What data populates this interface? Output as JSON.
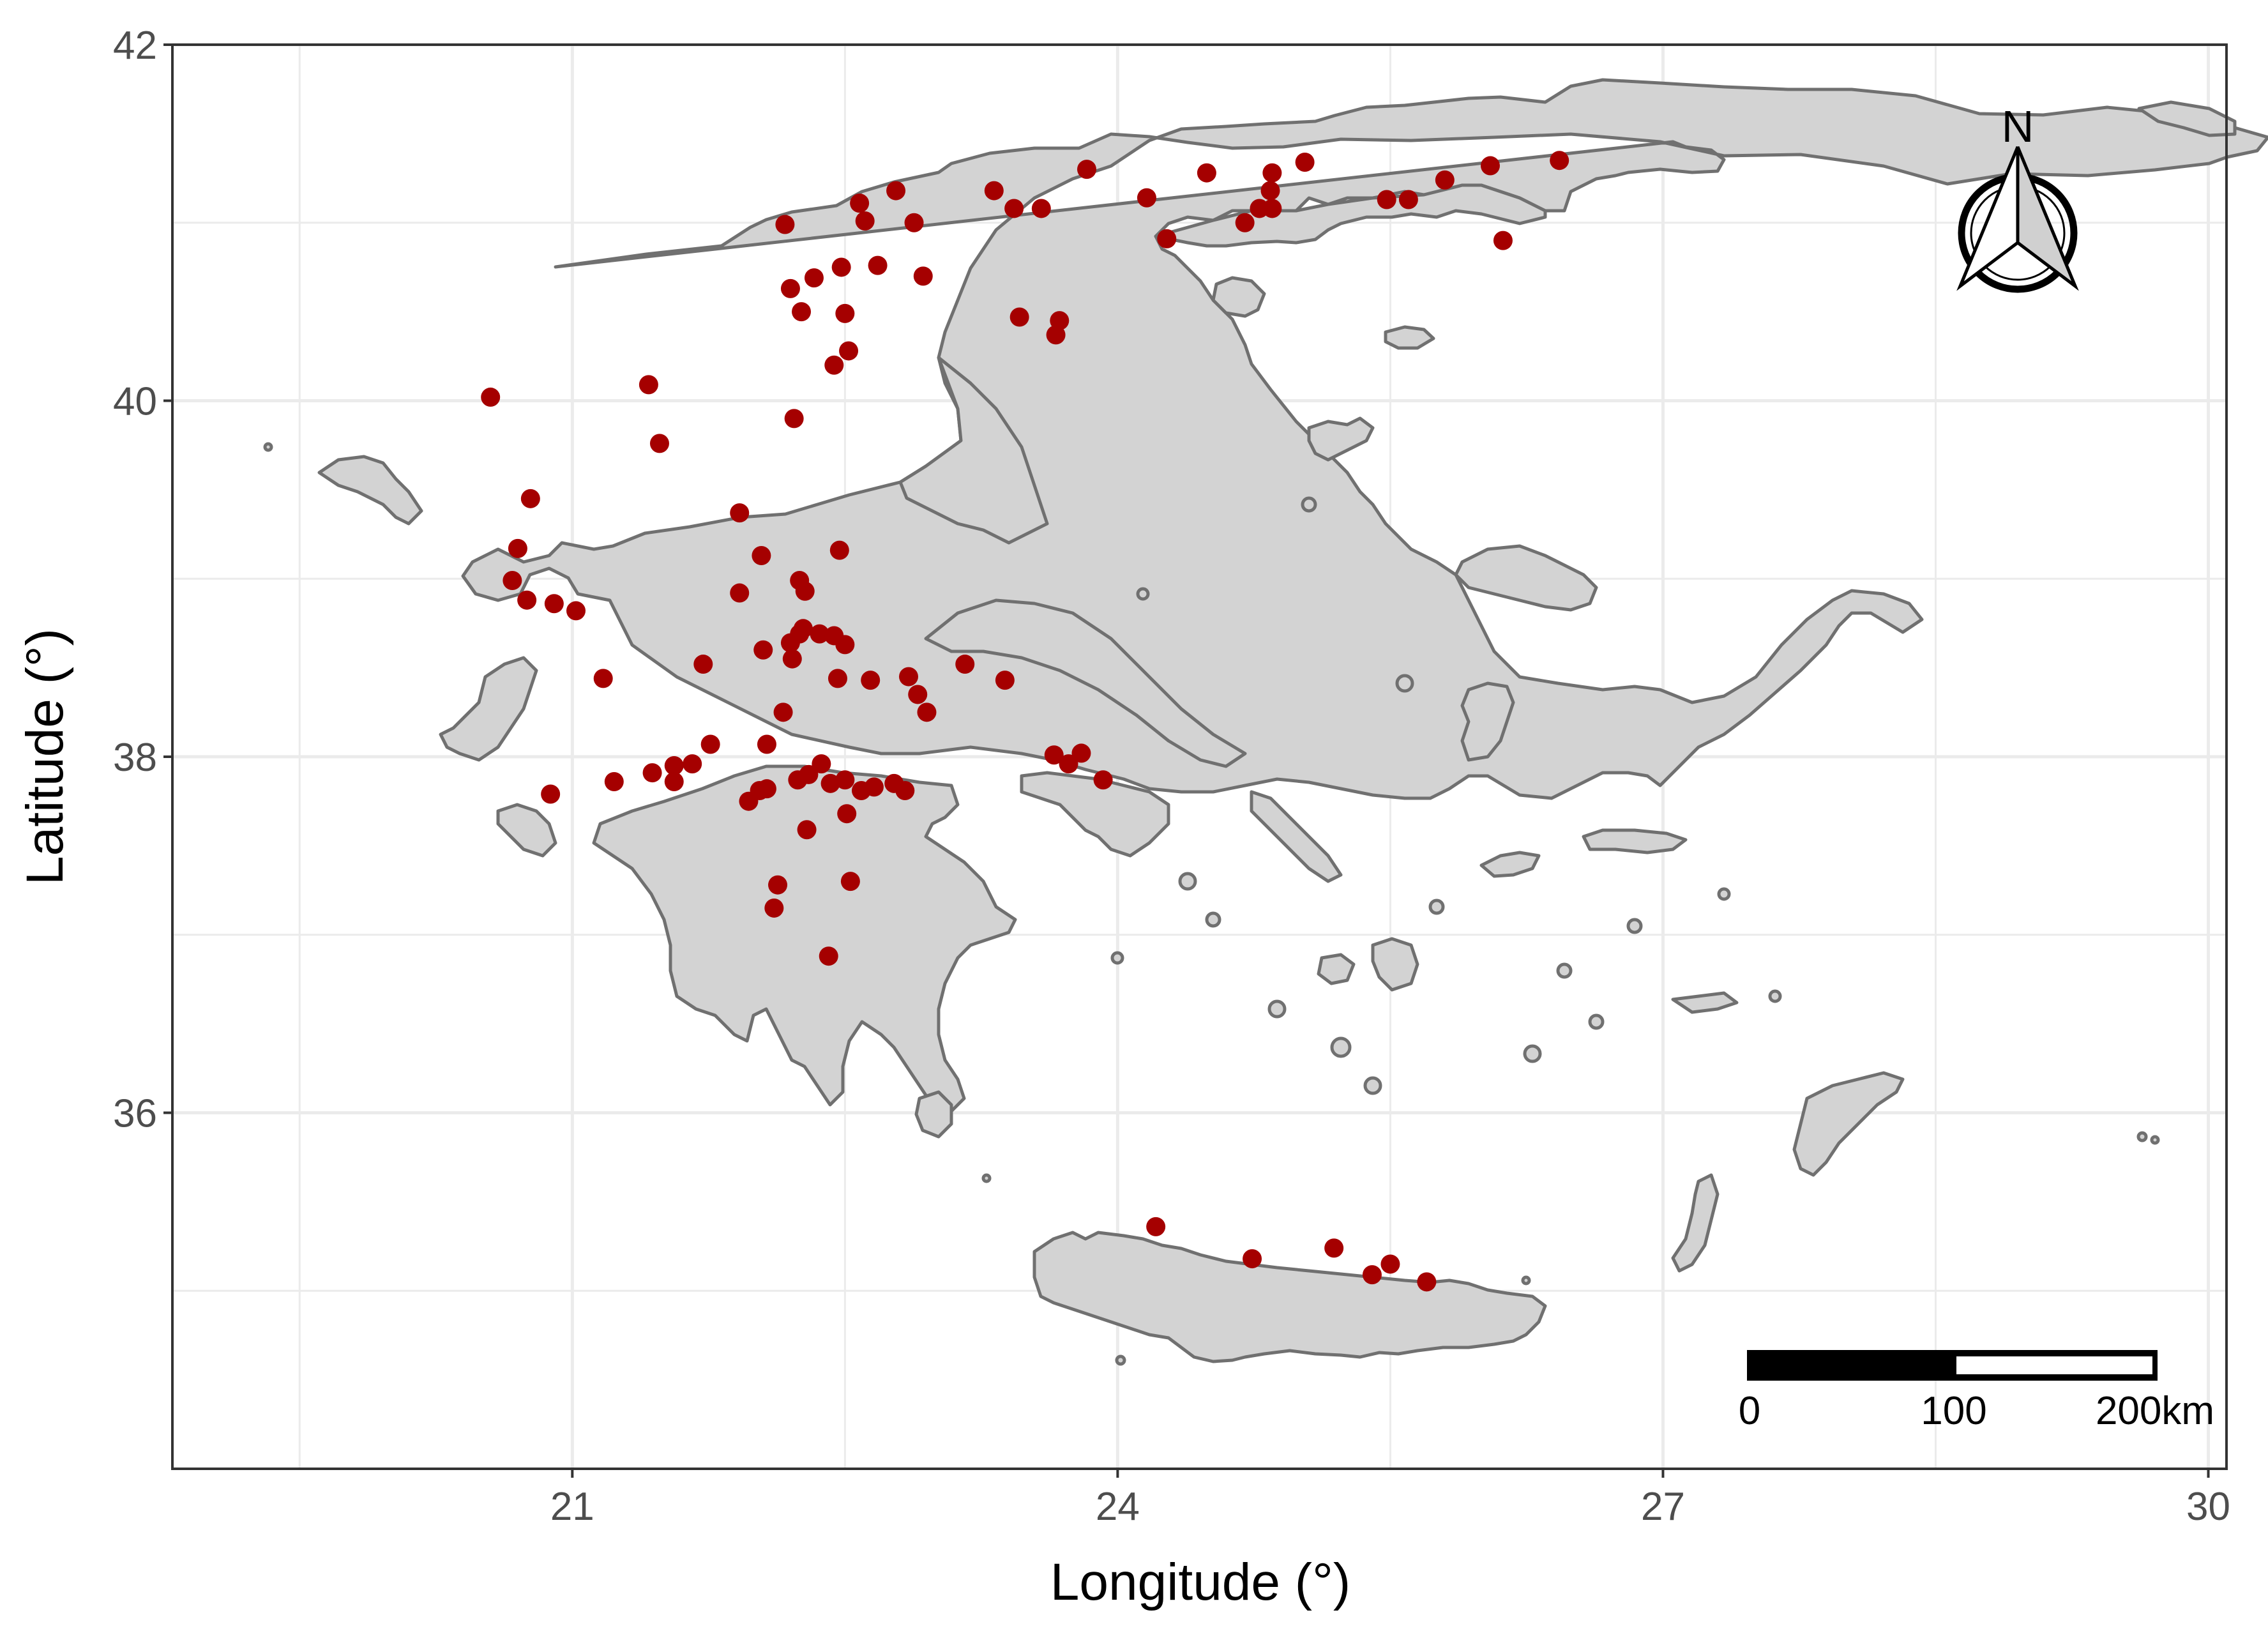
{
  "map": {
    "xlabel": "Longitude (°)",
    "ylabel": "Latitude (°)",
    "xlim": [
      18.8,
      30.1
    ],
    "ylim": [
      34.0,
      42.0
    ],
    "x_ticks": [
      21,
      24,
      27,
      30
    ],
    "y_ticks": [
      36,
      38,
      40,
      42
    ],
    "x_tick_labels": [
      "21",
      "24",
      "27",
      "30"
    ],
    "y_tick_labels": [
      "36",
      "38",
      "40",
      "42"
    ],
    "grid": true,
    "land_color": "#d3d3d3",
    "border_color": "#707070",
    "point_color": "#a50000"
  },
  "north_arrow": {
    "label": "N",
    "icon": "north-arrow-icon"
  },
  "scale_bar": {
    "labels": [
      "0",
      "100",
      "200km"
    ]
  },
  "chart_data": {
    "type": "scatter",
    "xlabel": "Longitude (°)",
    "ylabel": "Latitude (°)",
    "xlim": [
      18.8,
      30.1
    ],
    "ylim": [
      34.0,
      42.0
    ],
    "grid": true,
    "points": [
      [
        20.55,
        40.02
      ],
      [
        21.42,
        40.09
      ],
      [
        21.48,
        39.76
      ],
      [
        20.77,
        39.45
      ],
      [
        20.7,
        39.17
      ],
      [
        20.67,
        38.99
      ],
      [
        20.75,
        38.88
      ],
      [
        20.9,
        38.86
      ],
      [
        21.02,
        38.82
      ],
      [
        21.17,
        38.44
      ],
      [
        21.23,
        37.86
      ],
      [
        20.88,
        37.79
      ],
      [
        21.44,
        37.91
      ],
      [
        21.56,
        37.95
      ],
      [
        21.66,
        37.96
      ],
      [
        21.76,
        38.07
      ],
      [
        21.56,
        37.86
      ],
      [
        21.72,
        38.52
      ],
      [
        21.92,
        38.92
      ],
      [
        21.92,
        39.37
      ],
      [
        22.04,
        39.13
      ],
      [
        22.05,
        38.6
      ],
      [
        21.97,
        37.75
      ],
      [
        22.03,
        37.81
      ],
      [
        22.07,
        38.07
      ],
      [
        22.16,
        38.25
      ],
      [
        22.2,
        38.64
      ],
      [
        22.25,
        38.69
      ],
      [
        22.21,
        38.55
      ],
      [
        22.25,
        38.99
      ],
      [
        22.28,
        38.93
      ],
      [
        22.27,
        38.72
      ],
      [
        22.36,
        38.69
      ],
      [
        22.44,
        38.68
      ],
      [
        22.5,
        38.63
      ],
      [
        22.46,
        38.44
      ],
      [
        22.47,
        39.16
      ],
      [
        22.22,
        39.9
      ],
      [
        22.44,
        40.2
      ],
      [
        22.52,
        40.28
      ],
      [
        22.5,
        40.49
      ],
      [
        22.26,
        40.5
      ],
      [
        22.2,
        40.63
      ],
      [
        22.33,
        40.69
      ],
      [
        22.48,
        40.75
      ],
      [
        22.68,
        40.76
      ],
      [
        22.93,
        40.7
      ],
      [
        22.17,
        40.99
      ],
      [
        22.58,
        41.11
      ],
      [
        22.61,
        41.01
      ],
      [
        22.78,
        41.18
      ],
      [
        22.88,
        41.0
      ],
      [
        23.32,
        41.18
      ],
      [
        23.43,
        41.08
      ],
      [
        23.58,
        41.08
      ],
      [
        23.83,
        41.3
      ],
      [
        24.16,
        41.14
      ],
      [
        24.27,
        40.91
      ],
      [
        24.49,
        41.28
      ],
      [
        24.7,
        41.0
      ],
      [
        24.78,
        41.08
      ],
      [
        24.85,
        41.08
      ],
      [
        24.84,
        41.18
      ],
      [
        24.85,
        41.28
      ],
      [
        25.03,
        41.34
      ],
      [
        25.48,
        41.13
      ],
      [
        25.6,
        41.13
      ],
      [
        25.8,
        41.24
      ],
      [
        26.05,
        41.32
      ],
      [
        26.12,
        40.9
      ],
      [
        26.43,
        41.35
      ],
      [
        23.46,
        40.47
      ],
      [
        23.68,
        40.45
      ],
      [
        23.66,
        40.37
      ],
      [
        22.07,
        37.82
      ],
      [
        22.24,
        37.87
      ],
      [
        22.3,
        37.9
      ],
      [
        22.37,
        37.96
      ],
      [
        22.42,
        37.85
      ],
      [
        22.5,
        37.87
      ],
      [
        22.59,
        37.81
      ],
      [
        22.66,
        37.83
      ],
      [
        22.77,
        37.85
      ],
      [
        22.83,
        37.81
      ],
      [
        22.51,
        37.68
      ],
      [
        22.29,
        37.59
      ],
      [
        22.13,
        37.28
      ],
      [
        22.11,
        37.15
      ],
      [
        22.53,
        37.3
      ],
      [
        22.41,
        36.88
      ],
      [
        22.64,
        38.43
      ],
      [
        22.85,
        38.45
      ],
      [
        22.9,
        38.35
      ],
      [
        22.95,
        38.25
      ],
      [
        23.16,
        38.52
      ],
      [
        23.38,
        38.43
      ],
      [
        23.65,
        38.01
      ],
      [
        23.73,
        37.96
      ],
      [
        23.8,
        38.02
      ],
      [
        23.92,
        37.87
      ],
      [
        24.21,
        35.36
      ],
      [
        24.74,
        35.18
      ],
      [
        25.19,
        35.24
      ],
      [
        25.4,
        35.09
      ],
      [
        25.5,
        35.15
      ],
      [
        25.7,
        35.05
      ]
    ]
  }
}
